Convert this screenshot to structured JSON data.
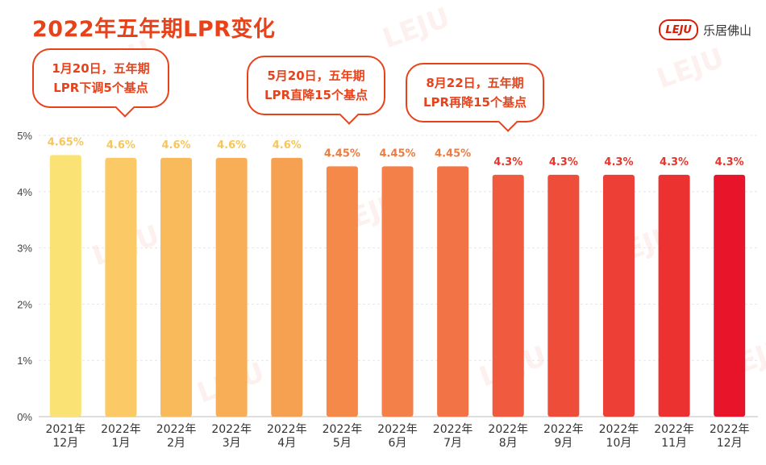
{
  "title": "2022年五年期LPR变化",
  "logo": {
    "mark": "LEJU",
    "text": "乐居佛山"
  },
  "callouts": [
    {
      "line1": "1月20日，五年期",
      "line2": "LPR下调5个基点"
    },
    {
      "line1": "5月20日，五年期",
      "line2": "LPR直降15个基点"
    },
    {
      "line1": "8月22日，五年期",
      "line2": "LPR再降15个基点"
    }
  ],
  "colors": {
    "title": "#e8421b",
    "callout": "#e8421b",
    "bar_gradient": [
      "#fbe274",
      "#fbc965",
      "#f9ba5c",
      "#f8ad57",
      "#f6a151",
      "#f4894a",
      "#f38049",
      "#f27446",
      "#f05a3f",
      "#ee4d3a",
      "#ed3f36",
      "#ec3231",
      "#e8152a"
    ]
  },
  "chart_data": {
    "type": "bar",
    "categories": [
      "2021年\n12月",
      "2022年\n1月",
      "2022年\n2月",
      "2022年\n3月",
      "2022年\n4月",
      "2022年\n5月",
      "2022年\n6月",
      "2022年\n7月",
      "2022年\n8月",
      "2022年\n9月",
      "2022年\n10月",
      "2022年\n11月",
      "2022年\n12月"
    ],
    "values": [
      4.65,
      4.6,
      4.6,
      4.6,
      4.6,
      4.45,
      4.45,
      4.45,
      4.3,
      4.3,
      4.3,
      4.3,
      4.3
    ],
    "value_labels": [
      "4.65%",
      "4.6%",
      "4.6%",
      "4.6%",
      "4.6%",
      "4.45%",
      "4.45%",
      "4.45%",
      "4.3%",
      "4.3%",
      "4.3%",
      "4.3%",
      "4.3%"
    ],
    "yticks": [
      "0%",
      "1%",
      "2%",
      "3%",
      "4%",
      "5%"
    ],
    "ylim": [
      0,
      5
    ],
    "grid": true
  }
}
